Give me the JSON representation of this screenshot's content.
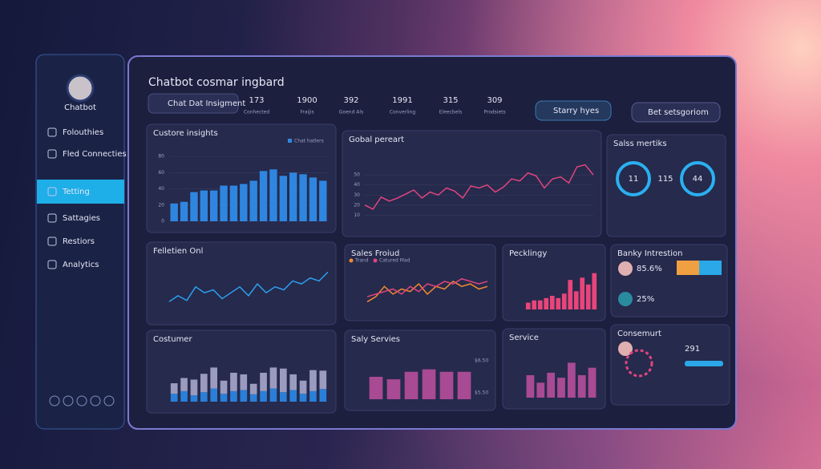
{
  "sidebar": {
    "profile": "Chatbot",
    "nav": [
      "Folouthies",
      "Fled Connecties",
      "Tetting",
      "Sattagies",
      "Restiors",
      "Analytics"
    ],
    "active": 2
  },
  "header": {
    "title": "Chatbot cosmar ingbard",
    "search": "Chat Dat Insigment",
    "dropdown": "Starry hyes",
    "search2": "Bet setsgoriom",
    "stats": [
      {
        "value": 173,
        "label": "Conhected"
      },
      {
        "value": 1900,
        "label": "Fraijis"
      },
      {
        "value": 392,
        "label": "Goend Als"
      },
      {
        "value": 1991,
        "label": "Converling"
      },
      {
        "value": 315,
        "label": "Eleecbels"
      },
      {
        "value": 309,
        "label": "Prodsiets"
      }
    ]
  },
  "panels": [
    {
      "title": "Custore insights",
      "type": "bar",
      "legend": "Chat hatlers",
      "color": "#2f86e0",
      "ylim": [
        0,
        90
      ],
      "yticks": [
        0,
        20,
        40,
        60,
        80
      ],
      "values": [
        22,
        24,
        36,
        38,
        38,
        44,
        44,
        46,
        50,
        62,
        64,
        56,
        60,
        58,
        54,
        50
      ]
    },
    {
      "title": "Gobal pereart",
      "type": "line",
      "ylim": [
        0,
        70
      ],
      "yticks": [
        10,
        20,
        30,
        40,
        50
      ],
      "series": [
        {
          "color": "#e0457f",
          "values": [
            20,
            16,
            28,
            24,
            27,
            31,
            35,
            27,
            33,
            30,
            37,
            34,
            27,
            39,
            37,
            40,
            33,
            38,
            46,
            44,
            52,
            49,
            37,
            46,
            48,
            42,
            58,
            60,
            50
          ]
        }
      ]
    },
    {
      "title": "Salss mertiks",
      "type": "rings",
      "items": [
        11,
        115,
        44
      ]
    },
    {
      "title": "Felletien Onl",
      "type": "line",
      "ylim": [
        0,
        80
      ],
      "series": [
        {
          "color": "#2aa0f0",
          "values": [
            20,
            30,
            22,
            45,
            35,
            40,
            25,
            35,
            45,
            30,
            50,
            35,
            45,
            40,
            55,
            50,
            60,
            55,
            70
          ]
        }
      ]
    },
    {
      "title": "Sales Froiud",
      "type": "line",
      "ylim": [
        0,
        80
      ],
      "legend_names": [
        "Trand",
        "Catured Mad"
      ],
      "series": [
        {
          "color": "#f08a30",
          "values": [
            15,
            25,
            45,
            30,
            40,
            35,
            50,
            30,
            45,
            40,
            55,
            45,
            50,
            40,
            45
          ]
        },
        {
          "color": "#e0457f",
          "values": [
            25,
            30,
            35,
            40,
            30,
            45,
            35,
            50,
            45,
            55,
            50,
            60,
            55,
            50,
            55
          ]
        }
      ]
    },
    {
      "title": "Pecklingy",
      "type": "bar",
      "color": "#e8457a",
      "ylim": [
        0,
        90
      ],
      "values": [
        15,
        20,
        20,
        25,
        30,
        25,
        35,
        65,
        40,
        70,
        55,
        80
      ]
    },
    {
      "title": "Banky Intrestion",
      "type": "kpi",
      "items": [
        "85.6%",
        "25%"
      ]
    },
    {
      "title": "Costumer",
      "type": "stacked",
      "ylim": [
        0,
        90
      ],
      "series": [
        {
          "color": "#2a7fd8",
          "values": [
            15,
            20,
            12,
            18,
            25,
            15,
            20,
            22,
            14,
            20,
            25,
            18,
            22,
            15,
            20,
            24
          ]
        },
        {
          "color": "#9a9bbf",
          "values": [
            20,
            25,
            30,
            35,
            40,
            25,
            35,
            30,
            20,
            35,
            40,
            45,
            30,
            25,
            40,
            35
          ]
        }
      ]
    },
    {
      "title": "Saly Servies",
      "type": "bar",
      "color": "#a84a94",
      "ylim": [
        0,
        90
      ],
      "values": [
        45,
        40,
        55,
        60,
        55,
        55
      ],
      "side_labels": [
        "$6.50",
        "$5.50"
      ]
    },
    {
      "title": "Service",
      "type": "bar",
      "color": "#a84a94",
      "ylim": [
        0,
        90
      ],
      "values": [
        45,
        30,
        50,
        40,
        70,
        45,
        60
      ]
    },
    {
      "title": "Consemurt",
      "type": "kpi",
      "items": [
        291
      ]
    }
  ]
}
